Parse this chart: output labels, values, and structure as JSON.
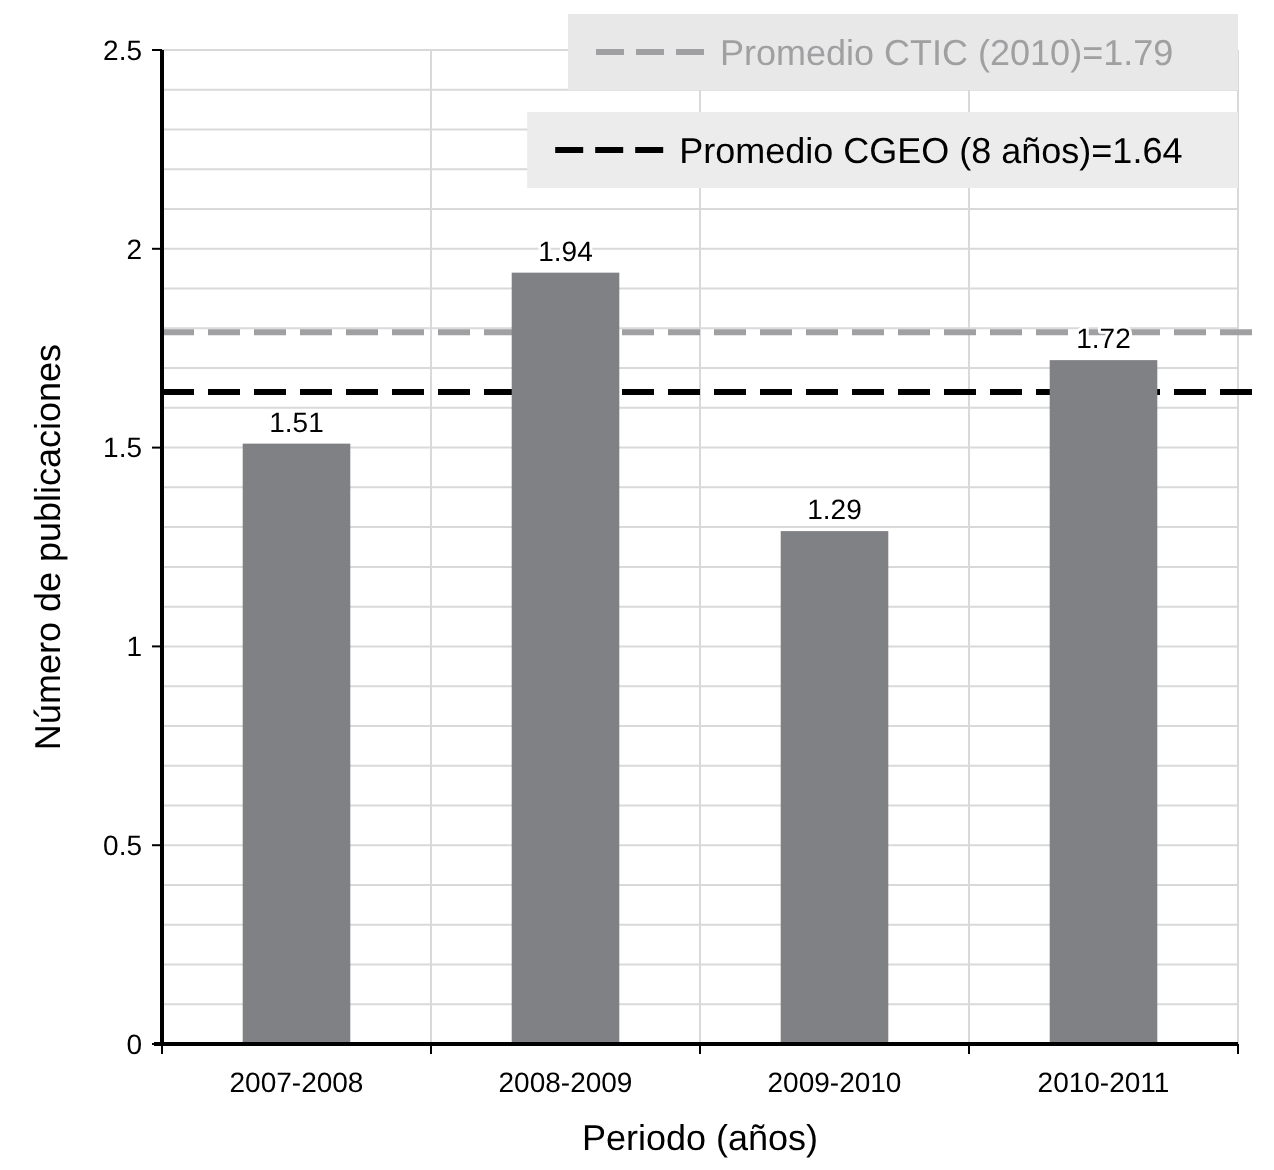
{
  "chart_data": {
    "type": "bar",
    "xlabel": "Periodo (años)",
    "ylabel": "Número de publicaciones",
    "categories": [
      "2007-2008",
      "2008-2009",
      "2009-2010",
      "2010-2011"
    ],
    "values": [
      1.51,
      1.94,
      1.29,
      1.72
    ],
    "color": "#808184",
    "ylim": [
      0,
      2.5
    ],
    "yticks": [
      0,
      0.5,
      1,
      1.5,
      2,
      2.5
    ],
    "grid": true,
    "data_labels": true,
    "legend": "top right",
    "ref_lines": [
      {
        "axis": "y",
        "value": 1.79,
        "label": "Promedio CTIC (2010)=1.79",
        "color": "#a0a0a2",
        "line_style": "dashed"
      },
      {
        "axis": "y",
        "value": 1.64,
        "label": "Promedio CGEO (8 años)=1.64",
        "color": "#000000",
        "line_style": "dashed"
      }
    ]
  }
}
